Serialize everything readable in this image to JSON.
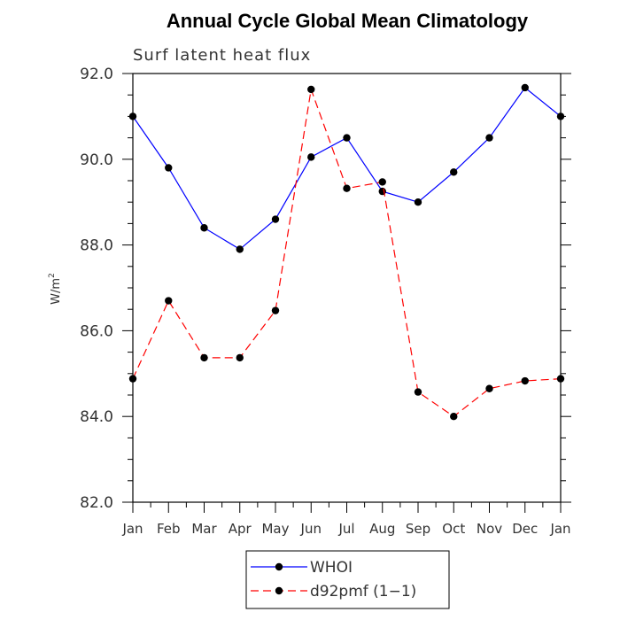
{
  "chart_data": {
    "type": "line",
    "title": "Annual Cycle Global Mean Climatology",
    "subtitle": "Surf latent heat flux",
    "xlabel": "",
    "ylabel": "W/m",
    "ylabel_superscript": "2",
    "ylim": [
      82.0,
      92.0
    ],
    "yticks": [
      "82.0",
      "84.0",
      "86.0",
      "88.0",
      "90.0",
      "92.0"
    ],
    "categories": [
      "Jan",
      "Feb",
      "Mar",
      "Apr",
      "May",
      "Jun",
      "Jul",
      "Aug",
      "Sep",
      "Oct",
      "Nov",
      "Dec",
      "Jan"
    ],
    "series": [
      {
        "name": "WHOI",
        "color": "#0000ff",
        "line_style": "solid",
        "marker": "filled-circle",
        "values": [
          91.0,
          89.8,
          88.4,
          87.9,
          88.6,
          90.05,
          90.5,
          89.25,
          89.0,
          89.7,
          90.5,
          91.67,
          91.0
        ]
      },
      {
        "name": "d92pmf (1−1)",
        "color": "#ff0000",
        "line_style": "dashed",
        "marker": "filled-circle",
        "values": [
          84.88,
          86.7,
          85.37,
          85.37,
          86.47,
          91.63,
          89.32,
          89.47,
          84.57,
          84.0,
          84.65,
          84.83,
          84.88
        ]
      }
    ],
    "grid": false,
    "legend_position": "bottom-center"
  }
}
